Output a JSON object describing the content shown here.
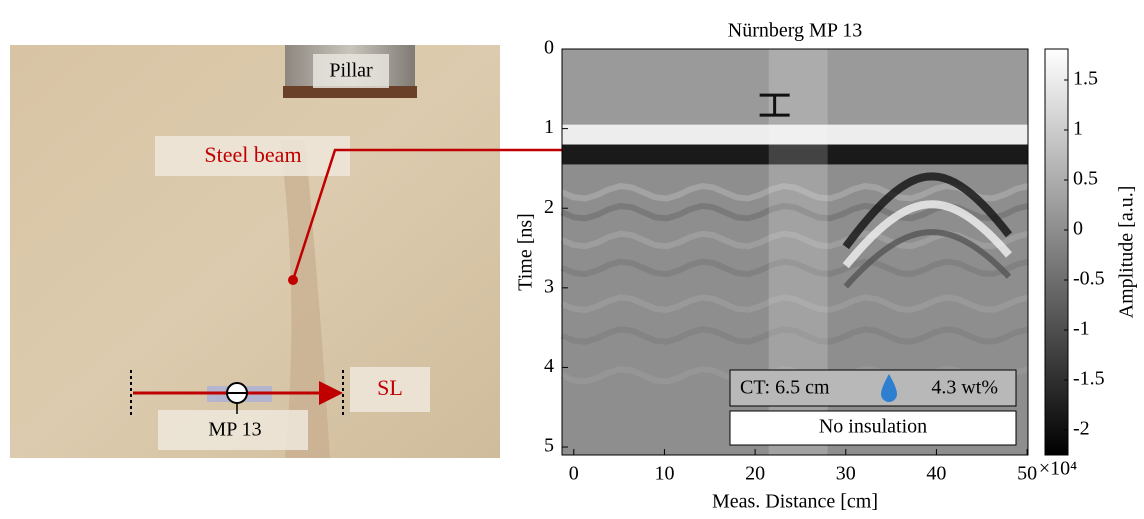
{
  "photo": {
    "labels": {
      "pillar": "Pillar",
      "steel_beam": "Steel beam",
      "sl": "SL",
      "mp": "MP 13"
    }
  },
  "chart_data": {
    "type": "radargram",
    "title": "Nürnberg MP 13",
    "xlabel": "Meas. Distance [cm]",
    "ylabel": "Time [ns]",
    "xlim": [
      -1.3,
      50.1
    ],
    "xticks": [
      0,
      10,
      20,
      30,
      40,
      50
    ],
    "ylim": [
      0,
      5.1
    ],
    "yticks": [
      0,
      1,
      2,
      3,
      4,
      5
    ],
    "y_inverted": true,
    "colorbar": {
      "label": "Amplitude [a.u.]",
      "lim": [
        -2.25,
        1.81
      ],
      "ticks": [
        1.5,
        1,
        0.5,
        0,
        -0.5,
        -1,
        -1.5,
        -2
      ],
      "multiplier": "×10⁴"
    },
    "annotations": {
      "ct": "CT: 6.5 cm",
      "moisture": "4.3 wt%",
      "insulation": "No insulation"
    }
  }
}
